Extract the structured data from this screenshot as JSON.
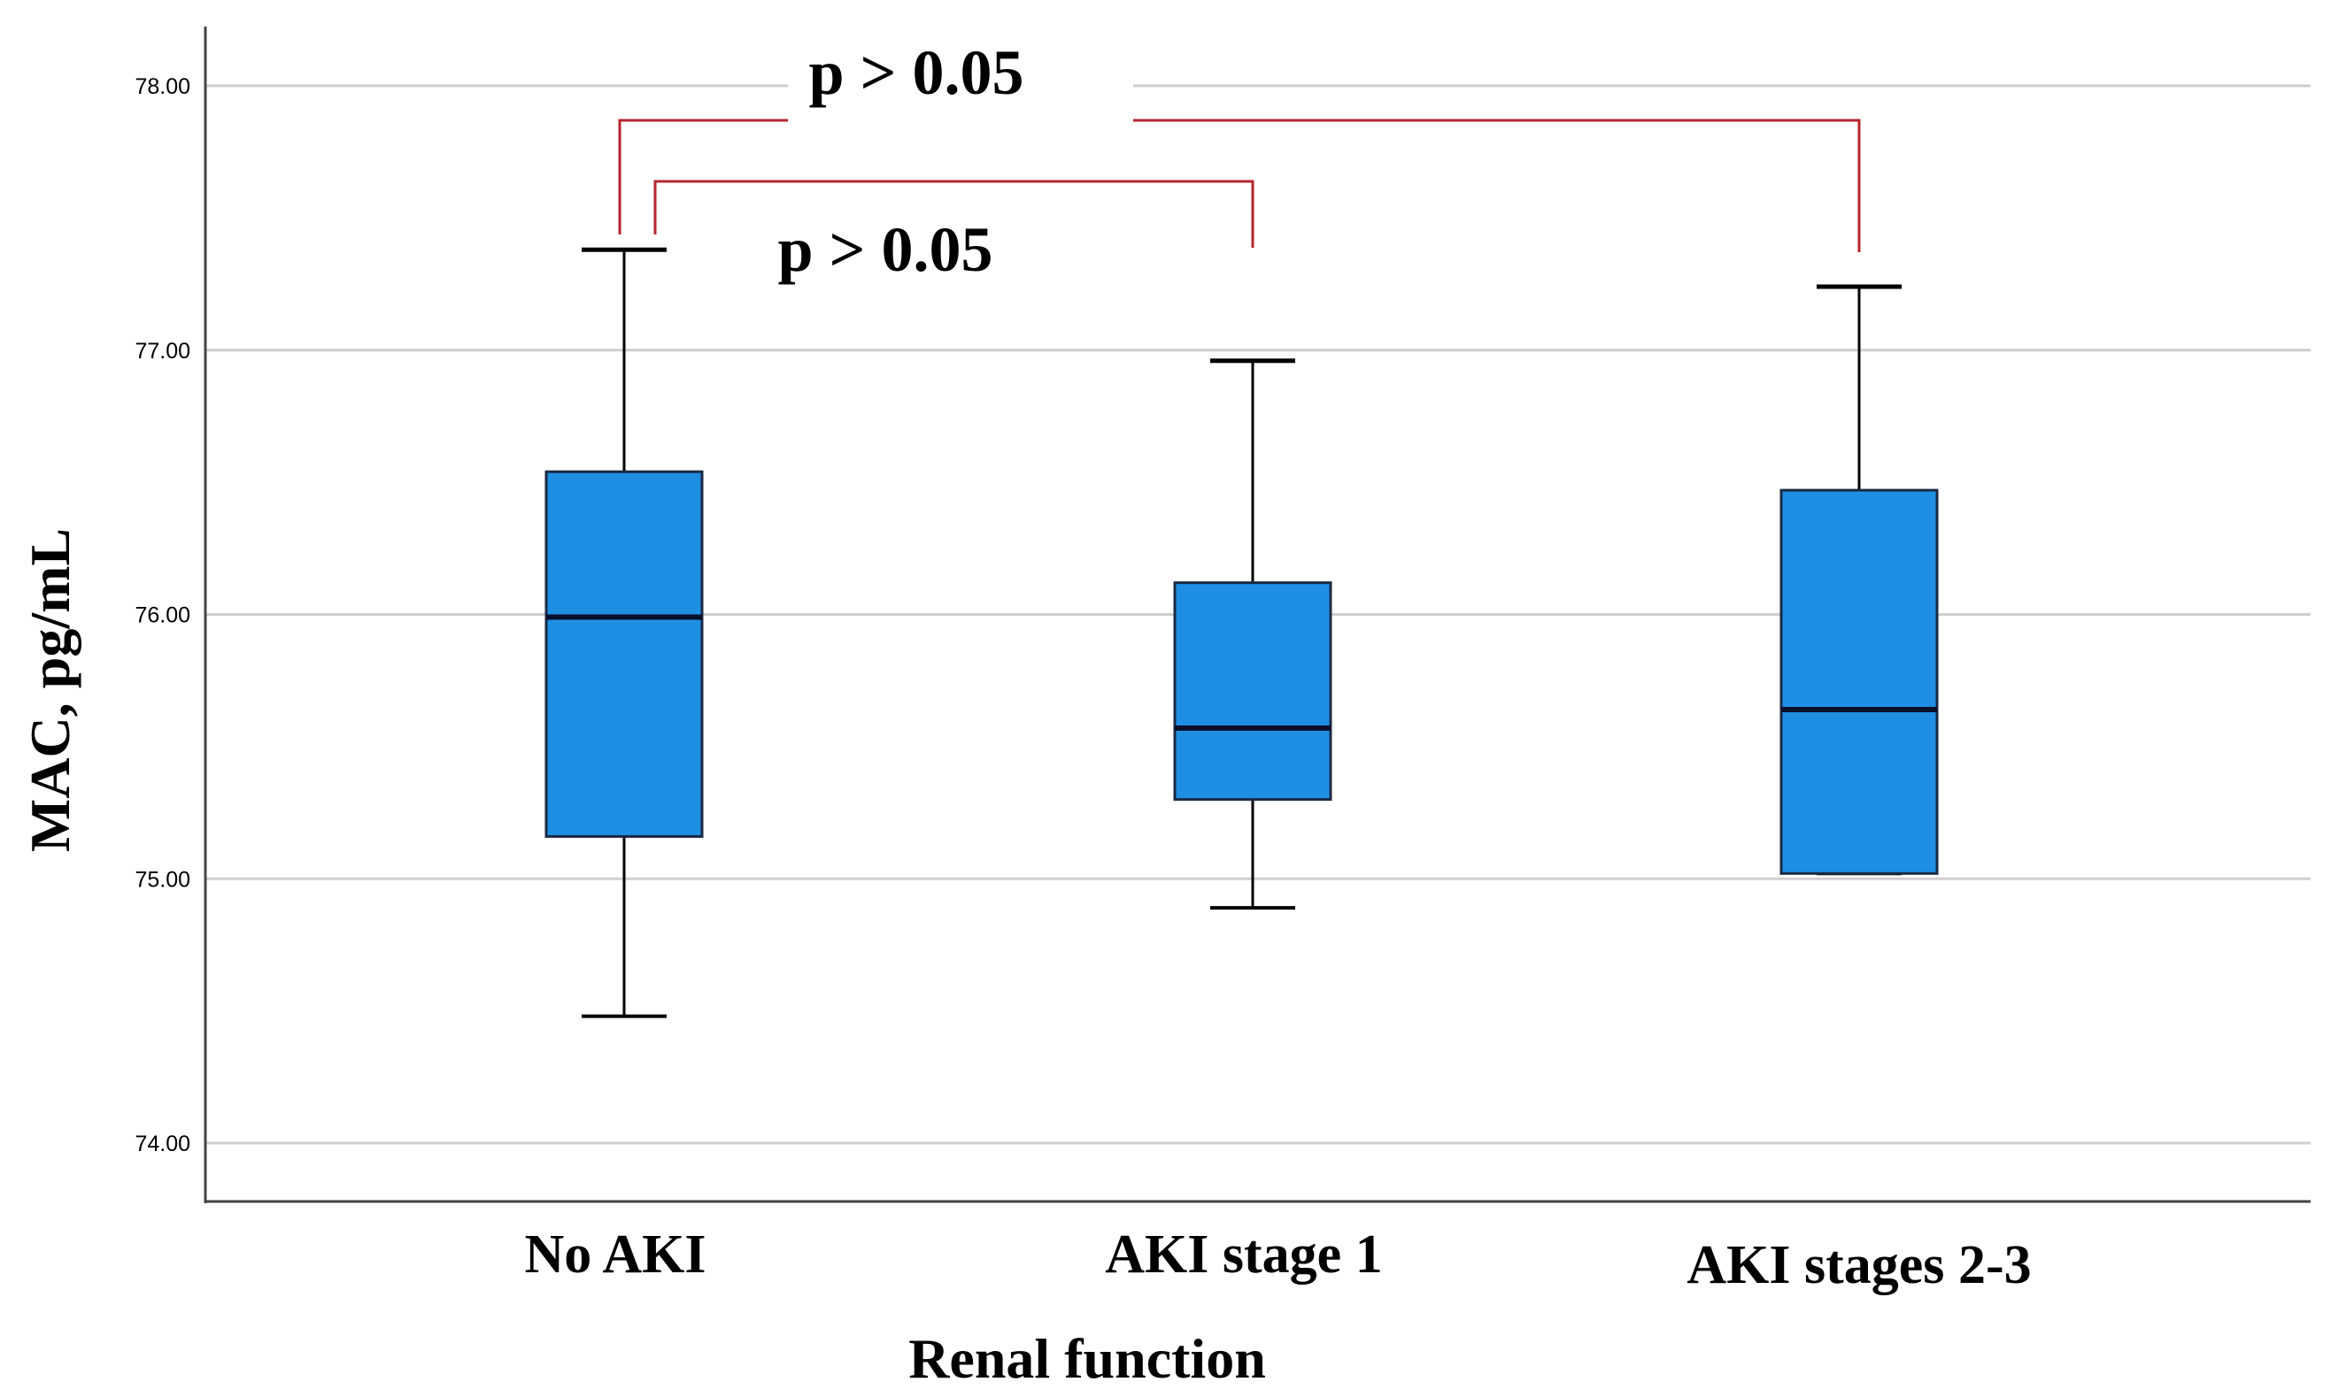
{
  "chart_data": {
    "type": "box",
    "xlabel": "Renal function",
    "ylabel": "MAC, pg/mL",
    "ylim": [
      73.8,
      78.3
    ],
    "yticks": [
      74,
      75,
      76,
      77,
      78
    ],
    "ytick_labels": [
      "74.00",
      "75.00",
      "76.00",
      "77.00",
      "78.00"
    ],
    "categories": [
      "No AKI",
      "AKI stage 1",
      "AKI stages 2-3"
    ],
    "boxes": [
      {
        "category": "No AKI",
        "whisker_low": 74.48,
        "q1": 75.16,
        "median": 75.99,
        "q3": 76.54,
        "whisker_high": 77.38
      },
      {
        "category": "AKI stage 1",
        "whisker_low": 74.89,
        "q1": 75.3,
        "median": 75.57,
        "q3": 76.12,
        "whisker_high": 76.96
      },
      {
        "category": "AKI stages 2-3",
        "whisker_low": 75.02,
        "q1": 75.02,
        "median": 75.64,
        "q3": 76.47,
        "whisker_high": 77.24
      }
    ],
    "comparisons": [
      {
        "from": "No AKI",
        "to": "AKI stages 2-3",
        "label": "p > 0.05"
      },
      {
        "from": "No AKI",
        "to": "AKI stage 1",
        "label": "p > 0.05"
      }
    ],
    "grid": true,
    "box_color": "#1e8fe3",
    "bracket_color": "#b5262f"
  }
}
